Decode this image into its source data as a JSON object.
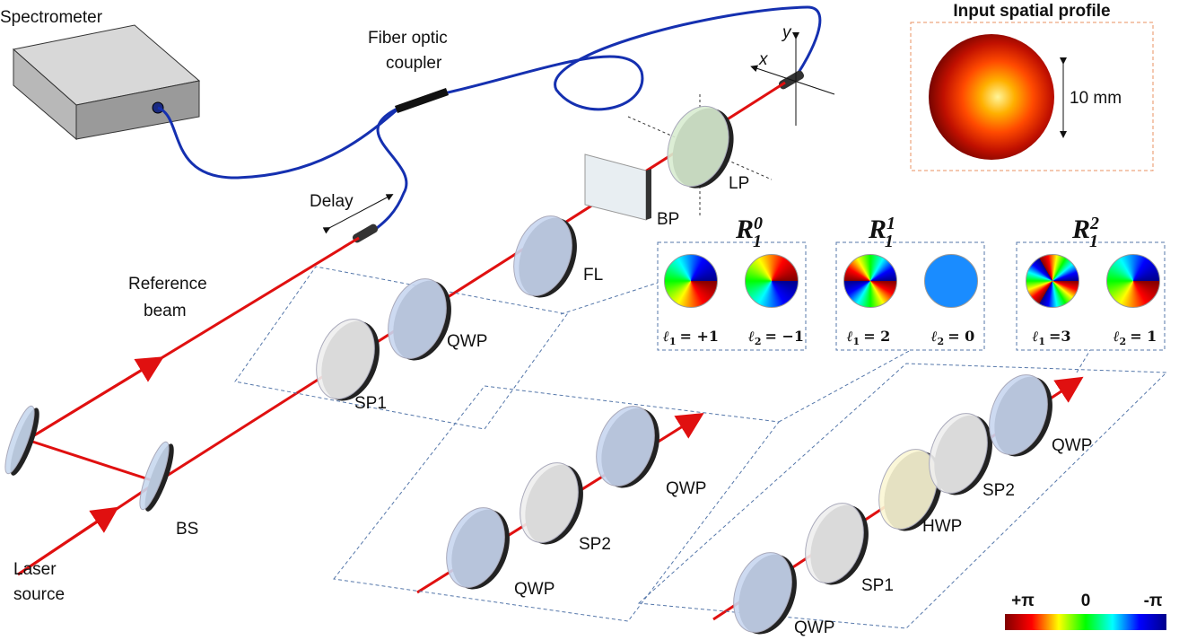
{
  "labels": {
    "spectrometer": "Spectrometer",
    "fiber_coupler": [
      "Fiber optic",
      "coupler"
    ],
    "axis_y": "y",
    "axis_x": "x",
    "profile_title": "Input spatial profile",
    "profile_scale": "10 mm",
    "lp": "LP",
    "bp": "BP",
    "fl": "FL",
    "delay": "Delay",
    "reference_beam": [
      "Reference",
      "beam"
    ],
    "bs": "BS",
    "laser_source": [
      "Laser",
      "source"
    ]
  },
  "insets": [
    {
      "title": {
        "base": "R",
        "sub": "1",
        "sup": "0"
      },
      "modes": [
        {
          "symbol": "ℓ",
          "index": "1",
          "value": "= +1"
        },
        {
          "symbol": "ℓ",
          "index": "2",
          "value": "= −1"
        }
      ],
      "elements": [
        "QWP",
        "SP1"
      ]
    },
    {
      "title": {
        "base": "R",
        "sub": "1",
        "sup": "1"
      },
      "modes": [
        {
          "symbol": "ℓ",
          "index": "1",
          "value": "= 2"
        },
        {
          "symbol": "ℓ",
          "index": "2",
          "value": "= 0"
        }
      ],
      "elements": [
        "QWP",
        "SP2",
        "QWP"
      ]
    },
    {
      "title": {
        "base": "R",
        "sub": "1",
        "sup": "2"
      },
      "modes": [
        {
          "symbol": "ℓ",
          "index": "1",
          "value": "=3"
        },
        {
          "symbol": "ℓ",
          "index": "2",
          "value": "= 1"
        }
      ],
      "elements": [
        "QWP",
        "HWP",
        "SP2",
        "SP1",
        "QWP"
      ]
    }
  ],
  "colorbar": [
    "+π",
    "0",
    "-π"
  ]
}
